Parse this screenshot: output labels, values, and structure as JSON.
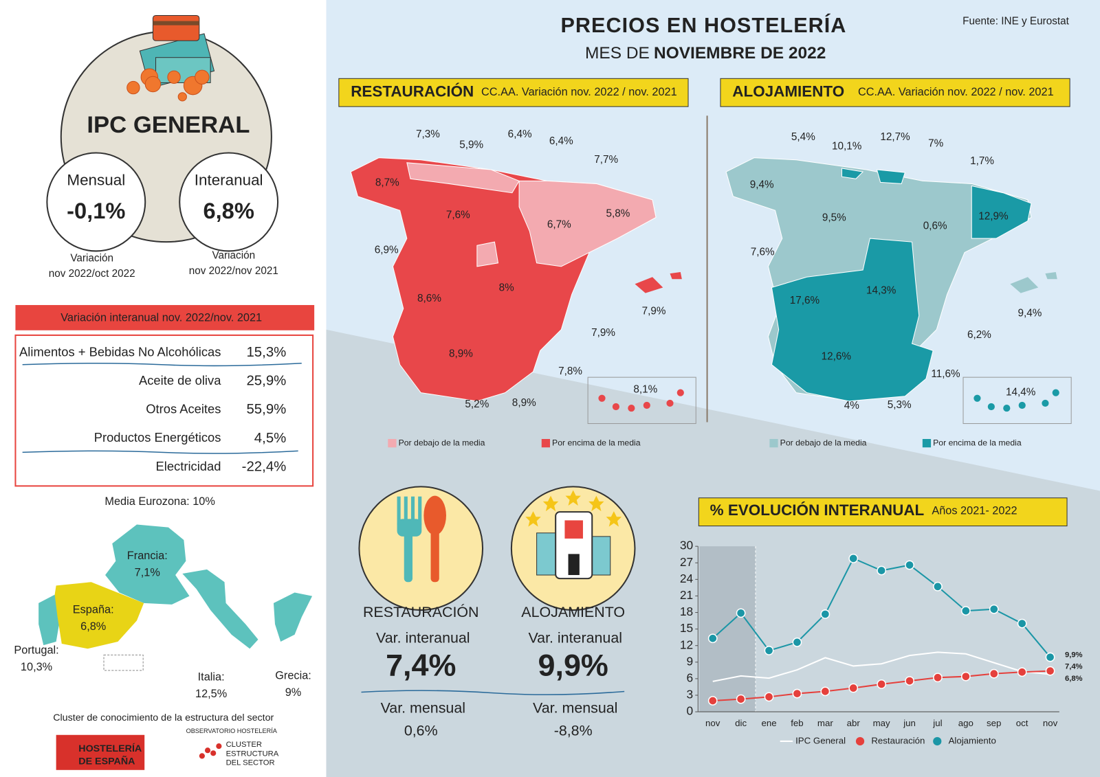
{
  "header": {
    "title": "PRECIOS EN HOSTELERÍA",
    "subtitle_prefix": "MES DE",
    "subtitle_bold": "NOVIEMBRE DE 2022",
    "source": "Fuente: INE y Eurostat"
  },
  "ipc": {
    "title": "IPC GENERAL",
    "monthly": {
      "label": "Mensual",
      "value": "-0,1%",
      "note": [
        "Variación",
        "nov 2022/oct 2022"
      ]
    },
    "annual": {
      "label": "Interanual",
      "value": "6,8%",
      "note": [
        "Variación",
        "nov 2022/nov 2021"
      ]
    }
  },
  "breakdown": {
    "title": "Variación interanual nov. 2022/nov. 2021",
    "rows": [
      [
        "Alimentos + Bebidas No Alcohólicas",
        "15,3%"
      ],
      [
        "Aceite de oliva",
        "25,9%"
      ],
      [
        "Otros Aceites",
        "55,9%"
      ],
      [
        "Productos Energéticos",
        "4,5%"
      ],
      [
        "Electricidad",
        "-22,4%"
      ]
    ]
  },
  "eurozone": {
    "title": "Media Eurozona: 10%",
    "countries": [
      {
        "name": "Francia:",
        "value": "7,1%"
      },
      {
        "name": "España:",
        "value": "6,8%"
      },
      {
        "name": "Portugal:",
        "value": "10,3%"
      },
      {
        "name": "Italia:",
        "value": "12,5%"
      },
      {
        "name": "Grecia:",
        "value": "9%"
      }
    ]
  },
  "restauracion_map": {
    "title": "RESTAURACIÓN",
    "subtitle": "CC.AA. Variación nov. 2022 / nov. 2021",
    "labels": [
      "7,3%",
      "5,9%",
      "6,4%",
      "6,4%",
      "7,7%",
      "8,7%",
      "7,6%",
      "6,7%",
      "5,8%",
      "6,9%",
      "8%",
      "8,6%",
      "7,9%",
      "7,9%",
      "8,9%",
      "7,8%",
      "8,1%",
      "5,2%",
      "8,9%"
    ],
    "legend": [
      "Por debajo de la media",
      "Por encima de la media"
    ]
  },
  "alojamiento_map": {
    "title": "ALOJAMIENTO",
    "subtitle": "CC.AA. Variación nov. 2022 / nov. 2021",
    "labels": [
      "5,4%",
      "10,1%",
      "12,7%",
      "7%",
      "1,7%",
      "9,4%",
      "9,5%",
      "0,6%",
      "12,9%",
      "7,6%",
      "14,3%",
      "17,6%",
      "9,4%",
      "6,2%",
      "12,6%",
      "11,6%",
      "14,4%",
      "4%",
      "5,3%"
    ],
    "legend": [
      "Por debajo de la media",
      "Por encima de la media"
    ]
  },
  "summary": [
    {
      "title": "RESTAURACIÓN",
      "annual_label": "Var. interanual",
      "annual": "7,4%",
      "monthly_label": "Var. mensual",
      "monthly": "0,6%"
    },
    {
      "title": "ALOJAMIENTO",
      "annual_label": "Var. interanual",
      "annual": "9,9%",
      "monthly_label": "Var. mensual",
      "monthly": "-8,8%"
    }
  ],
  "chart_data": {
    "type": "line",
    "title": "% EVOLUCIÓN INTERANUAL",
    "subtitle": "Años 2021- 2022",
    "categories": [
      "nov",
      "dic",
      "ene",
      "feb",
      "mar",
      "abr",
      "may",
      "jun",
      "jul",
      "ago",
      "sep",
      "oct",
      "nov"
    ],
    "series": [
      {
        "name": "IPC General",
        "color": "#ffffff",
        "markers": false,
        "values": [
          5.5,
          6.5,
          6.1,
          7.6,
          9.8,
          8.3,
          8.7,
          10.2,
          10.8,
          10.5,
          8.9,
          7.3,
          6.8
        ],
        "value_labels": [
          null,
          null,
          null,
          null,
          null,
          null,
          null,
          null,
          null,
          null,
          null,
          null,
          "6,8%"
        ]
      },
      {
        "name": "Restauración",
        "color": "#e5403c",
        "markers": true,
        "values": [
          2.0,
          2.3,
          2.7,
          3.3,
          3.7,
          4.3,
          5.0,
          5.6,
          6.2,
          6.4,
          6.9,
          7.2,
          7.4
        ],
        "value_labels": [
          null,
          null,
          null,
          null,
          null,
          null,
          null,
          null,
          null,
          null,
          null,
          null,
          "7,4%"
        ]
      },
      {
        "name": "Alojamiento",
        "color": "#1b96a6",
        "markers": true,
        "values": [
          13.3,
          17.9,
          11.1,
          12.6,
          17.7,
          27.8,
          25.6,
          26.6,
          22.7,
          18.3,
          18.6,
          16.0,
          9.9
        ],
        "value_labels": [
          null,
          null,
          null,
          null,
          null,
          null,
          null,
          null,
          null,
          null,
          null,
          null,
          "9,9%"
        ]
      }
    ],
    "ylim": [
      0,
      30
    ],
    "yticks": [
      0,
      3,
      6,
      9,
      12,
      15,
      18,
      21,
      24,
      27,
      30
    ],
    "grid": false
  },
  "footer": {
    "cluster_text": "Cluster de conocimiento de la estructura del sector",
    "logo1": [
      "HOSTELERÍA",
      "DE ESPAÑA"
    ],
    "observatorio": "OBSERVATORIO HOSTELERÍA",
    "logo2": [
      "CLUSTER",
      "ESTRUCTURA",
      "DEL SECTOR"
    ]
  }
}
